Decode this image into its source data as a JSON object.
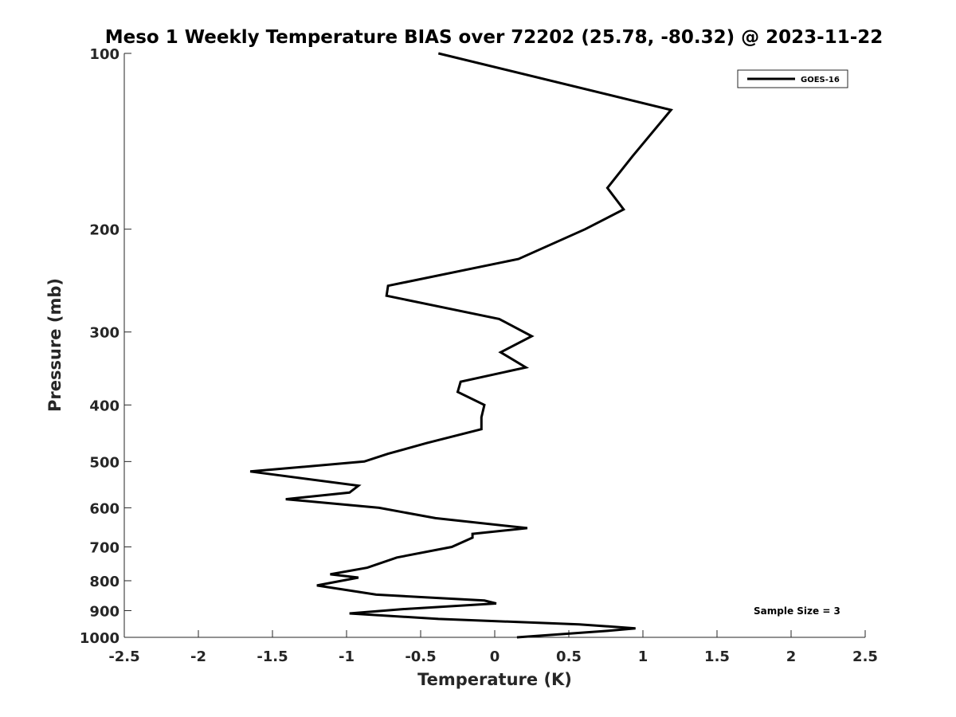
{
  "chart_data": {
    "type": "line",
    "title": "Meso 1 Weekly Temperature BIAS over 72202 (25.78, -80.32) @ 2023-11-22",
    "xlabel": "Temperature (K)",
    "ylabel": "Pressure (mb)",
    "xlim": [
      -2.5,
      2.5
    ],
    "ylim": [
      100,
      1000
    ],
    "y_scale": "log",
    "y_reversed": true,
    "x_ticks": [
      -2.5,
      -2,
      -1.5,
      -1,
      -0.5,
      0,
      0.5,
      1,
      1.5,
      2,
      2.5
    ],
    "x_tick_labels": [
      "-2.5",
      "-2",
      "-1.5",
      "-1",
      "-0.5",
      "0",
      "0.5",
      "1",
      "1.5",
      "2",
      "2.5"
    ],
    "y_ticks": [
      100,
      200,
      300,
      400,
      500,
      600,
      700,
      800,
      900,
      1000
    ],
    "y_tick_labels": [
      "100",
      "200",
      "300",
      "400",
      "500",
      "600",
      "700",
      "800",
      "900",
      "1000"
    ],
    "grid": false,
    "legend": {
      "position": "top-right",
      "entries": [
        "GOES-16"
      ]
    },
    "annotation": "Sample Size = 3",
    "series": [
      {
        "name": "GOES-16",
        "color": "#000000",
        "points": [
          [
            -0.38,
            100
          ],
          [
            1.19,
            125
          ],
          [
            0.93,
            150
          ],
          [
            0.76,
            170
          ],
          [
            0.87,
            185
          ],
          [
            0.61,
            200
          ],
          [
            0.16,
            225
          ],
          [
            -0.72,
            250
          ],
          [
            -0.73,
            260
          ],
          [
            0.03,
            285
          ],
          [
            0.25,
            305
          ],
          [
            0.04,
            325
          ],
          [
            0.21,
            345
          ],
          [
            -0.23,
            365
          ],
          [
            -0.25,
            380
          ],
          [
            -0.07,
            400
          ],
          [
            -0.09,
            420
          ],
          [
            -0.09,
            440
          ],
          [
            -0.46,
            465
          ],
          [
            -0.72,
            485
          ],
          [
            -0.88,
            500
          ],
          [
            -1.65,
            520
          ],
          [
            -0.92,
            550
          ],
          [
            -0.98,
            565
          ],
          [
            -1.41,
            580
          ],
          [
            -0.78,
            600
          ],
          [
            -0.4,
            625
          ],
          [
            0.22,
            650
          ],
          [
            -0.15,
            665
          ],
          [
            -0.15,
            675
          ],
          [
            -0.29,
            700
          ],
          [
            -0.66,
            730
          ],
          [
            -0.86,
            760
          ],
          [
            -1.11,
            780
          ],
          [
            -0.92,
            790
          ],
          [
            -1.2,
            815
          ],
          [
            -0.8,
            845
          ],
          [
            -0.07,
            865
          ],
          [
            0.01,
            875
          ],
          [
            -0.63,
            895
          ],
          [
            -0.98,
            910
          ],
          [
            -0.38,
            930
          ],
          [
            0.57,
            950
          ],
          [
            0.95,
            965
          ],
          [
            0.76,
            975
          ],
          [
            0.15,
            1000
          ]
        ]
      }
    ]
  }
}
